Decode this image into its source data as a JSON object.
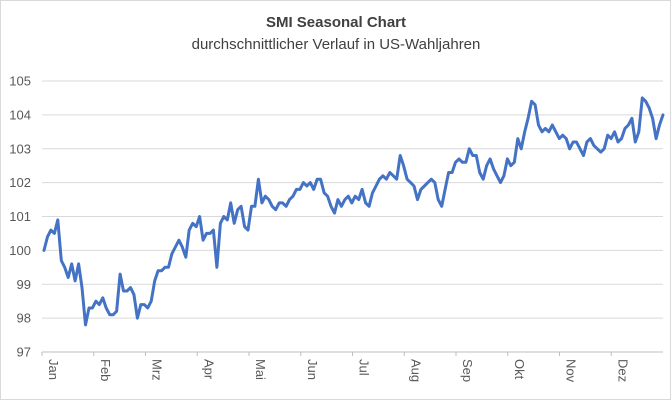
{
  "chart_data": {
    "type": "line",
    "title": "SMI Seasonal Chart",
    "subtitle": "durchschnittlicher Verlauf in US-Wahljahren",
    "xlabel": "",
    "ylabel": "",
    "ylim": [
      97,
      105
    ],
    "yticks": [
      "97",
      "98",
      "99",
      "100",
      "101",
      "102",
      "103",
      "104",
      "105"
    ],
    "months": [
      "Jan",
      "Feb",
      "Mrz",
      "Apr",
      "Mai",
      "Jun",
      "Jul",
      "Aug",
      "Sep",
      "Okt",
      "Nov",
      "Dez"
    ],
    "grid": true,
    "line_color": "#4472c4",
    "series": [
      {
        "name": "",
        "values": [
          100.0,
          100.4,
          100.6,
          100.5,
          100.9,
          99.7,
          99.5,
          99.2,
          99.6,
          99.1,
          99.6,
          98.9,
          97.8,
          98.3,
          98.3,
          98.5,
          98.4,
          98.6,
          98.3,
          98.1,
          98.1,
          98.2,
          99.3,
          98.8,
          98.8,
          98.9,
          98.7,
          98.0,
          98.4,
          98.4,
          98.3,
          98.5,
          99.1,
          99.4,
          99.4,
          99.5,
          99.5,
          99.9,
          100.1,
          100.3,
          100.1,
          99.8,
          100.6,
          100.8,
          100.7,
          101.0,
          100.3,
          100.5,
          100.5,
          100.6,
          99.5,
          100.8,
          101.0,
          100.9,
          101.4,
          100.8,
          101.2,
          101.3,
          100.7,
          100.6,
          101.3,
          101.3,
          102.1,
          101.4,
          101.6,
          101.5,
          101.3,
          101.2,
          101.4,
          101.4,
          101.3,
          101.5,
          101.6,
          101.8,
          101.8,
          102.0,
          101.9,
          102.0,
          101.8,
          102.1,
          102.1,
          101.7,
          101.6,
          101.3,
          101.1,
          101.5,
          101.3,
          101.5,
          101.6,
          101.4,
          101.6,
          101.5,
          101.8,
          101.4,
          101.3,
          101.7,
          101.9,
          102.1,
          102.2,
          102.1,
          102.3,
          102.2,
          102.1,
          102.8,
          102.5,
          102.1,
          102.0,
          101.9,
          101.5,
          101.8,
          101.9,
          102.0,
          102.1,
          102.0,
          101.5,
          101.3,
          101.8,
          102.3,
          102.3,
          102.6,
          102.7,
          102.6,
          102.6,
          103.0,
          102.8,
          102.8,
          102.3,
          102.1,
          102.5,
          102.7,
          102.4,
          102.2,
          102.0,
          102.2,
          102.7,
          102.5,
          102.6,
          103.3,
          103.0,
          103.5,
          103.9,
          104.4,
          104.3,
          103.7,
          103.5,
          103.6,
          103.5,
          103.7,
          103.5,
          103.3,
          103.4,
          103.3,
          103.0,
          103.2,
          103.2,
          103.0,
          102.8,
          103.2,
          103.3,
          103.1,
          103.0,
          102.9,
          103.0,
          103.4,
          103.3,
          103.5,
          103.2,
          103.3,
          103.6,
          103.7,
          103.9,
          103.2,
          103.5,
          104.5,
          104.4,
          104.2,
          103.9,
          103.3,
          103.7,
          104.0
        ]
      }
    ]
  }
}
